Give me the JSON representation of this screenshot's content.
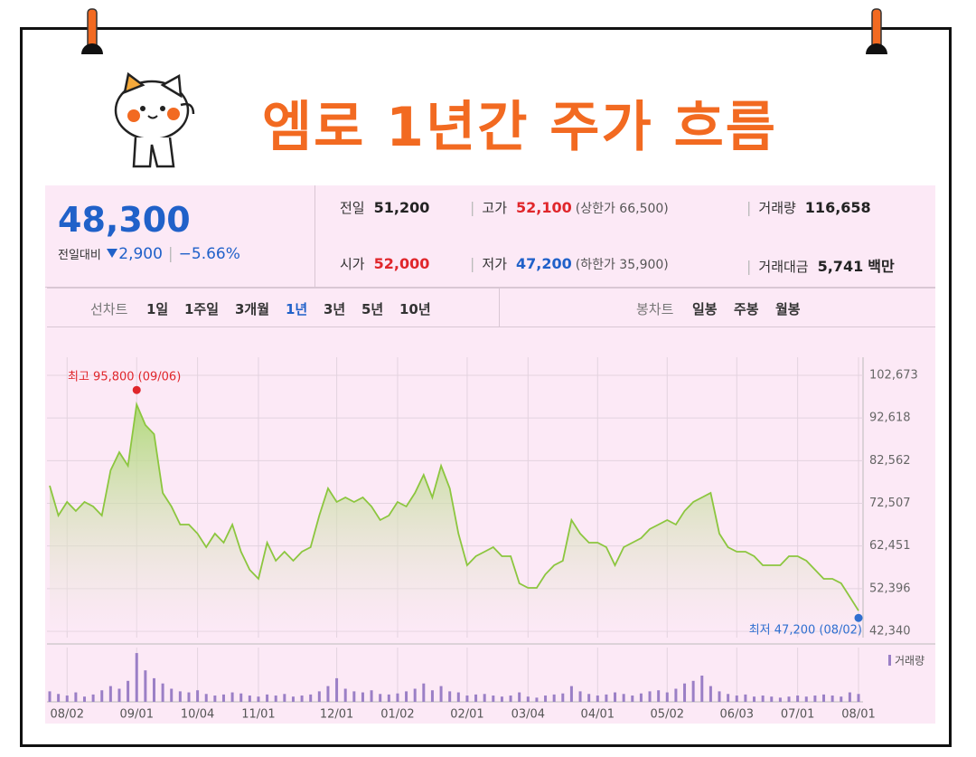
{
  "header": {
    "title": "엠로 1년간 주가 흐름"
  },
  "quote": {
    "price": "48,300",
    "change_label": "전일대비",
    "change": "2,900",
    "change_pct": "−5.66%"
  },
  "stats": [
    {
      "label": "전일",
      "value": "51,200"
    },
    {
      "label": "고가",
      "value": "52,100",
      "note": "(상한가 66,500)"
    },
    {
      "label": "거래량",
      "value": "116,658"
    },
    {
      "label": "시가",
      "value": "52,000"
    },
    {
      "label": "저가",
      "value": "47,200",
      "note": "(하한가 35,900)"
    },
    {
      "label": "거래대금",
      "value": "5,741",
      "unit": "백만"
    }
  ],
  "tabs": {
    "line_label": "선차트",
    "line": [
      "1일",
      "1주일",
      "3개월",
      "1년",
      "3년",
      "5년",
      "10년"
    ],
    "active": "1년",
    "candle_label": "봉차트",
    "candle": [
      "일봉",
      "주봉",
      "월봉"
    ]
  },
  "chart_data": [
    {
      "type": "line",
      "series": [
        {
          "color": "#8cc63f",
          "values": [
            76670,
            69630,
            72830,
            70700,
            72830,
            71760,
            69630,
            80290,
            84550,
            81360,
            95800,
            90950,
            88820,
            74960,
            71760,
            67500,
            67500,
            65370,
            62170,
            65370,
            63230,
            67500,
            61100,
            56840,
            54710,
            63230,
            58970,
            61100,
            58970,
            61100,
            62170,
            69630,
            76030,
            72830,
            73900,
            72830,
            73900,
            71760,
            68570,
            69630,
            72830,
            71760,
            74960,
            79230,
            73900,
            81360,
            76030,
            65370,
            57900,
            60040,
            61100,
            62170,
            60040,
            60040,
            53640,
            52570,
            52570,
            55770,
            57900,
            58970,
            68570,
            65370,
            63230,
            63230,
            62170,
            57900,
            62170,
            63230,
            64300,
            66430,
            67500,
            68570,
            67500,
            70700,
            72830,
            73900,
            74960,
            65370,
            62170,
            61100,
            61100,
            60040,
            57900,
            57900,
            57900,
            60040,
            60040,
            58970,
            56840,
            54710,
            54710,
            53640,
            50440,
            47200
          ]
        }
      ],
      "ylim": [
        42340,
        102673
      ],
      "yticks": [
        {
          "value": 42340,
          "label": "42,340"
        },
        {
          "value": 52396,
          "label": "52,396"
        },
        {
          "value": 62451,
          "label": "62,451"
        },
        {
          "value": 72507,
          "label": "72,507"
        },
        {
          "value": 82562,
          "label": "82,562"
        },
        {
          "value": 92618,
          "label": "92,618"
        },
        {
          "value": 102673,
          "label": "102,673"
        }
      ],
      "xticks": [
        {
          "value": 2,
          "label": "08/02"
        },
        {
          "value": 10,
          "label": "09/01"
        },
        {
          "value": 17,
          "label": "10/04"
        },
        {
          "value": 24,
          "label": "11/01"
        },
        {
          "value": 33,
          "label": "12/01"
        },
        {
          "value": 40,
          "label": "01/02"
        },
        {
          "value": 48,
          "label": "02/01"
        },
        {
          "value": 55,
          "label": "03/04"
        },
        {
          "value": 63,
          "label": "04/01"
        },
        {
          "value": 71,
          "label": "05/02"
        },
        {
          "value": 79,
          "label": "06/03"
        },
        {
          "value": 86,
          "label": "07/01"
        },
        {
          "value": 93,
          "label": "08/01"
        }
      ],
      "grid": true,
      "annotations": [
        {
          "text": "최고 95,800 (09/06)",
          "index": 10,
          "color": "#e0262b"
        },
        {
          "text": "최저 47,200 (08/02)",
          "index": 93,
          "color": "#2f6fd0"
        }
      ]
    },
    {
      "type": "bar",
      "legend": "거래량",
      "color": "#9b7fc6",
      "ylim": [
        0,
        100
      ],
      "values": [
        20,
        15,
        12,
        18,
        10,
        14,
        22,
        30,
        25,
        40,
        93,
        60,
        45,
        35,
        25,
        20,
        18,
        22,
        15,
        12,
        14,
        18,
        16,
        12,
        10,
        14,
        12,
        15,
        10,
        12,
        14,
        20,
        30,
        45,
        25,
        20,
        18,
        22,
        15,
        14,
        16,
        20,
        25,
        35,
        22,
        30,
        20,
        18,
        12,
        14,
        15,
        12,
        10,
        12,
        18,
        10,
        8,
        12,
        14,
        16,
        30,
        20,
        15,
        12,
        14,
        18,
        15,
        12,
        16,
        20,
        22,
        18,
        25,
        35,
        40,
        50,
        30,
        20,
        15,
        12,
        14,
        10,
        12,
        10,
        8,
        10,
        12,
        10,
        12,
        14,
        12,
        10,
        18,
        15
      ]
    }
  ]
}
